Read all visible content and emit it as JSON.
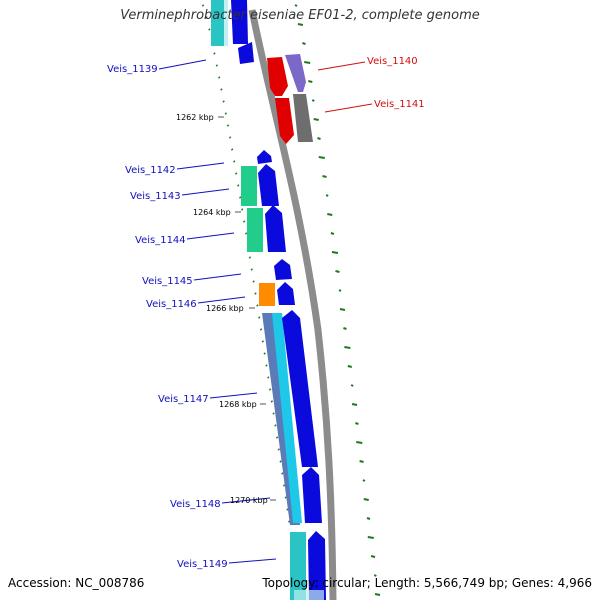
{
  "title": "Verminephrobacter eiseniae EF01-2, complete genome",
  "accession": "Accession: NC_008786",
  "topology": "Topology: circular; Length: 5,566,749 bp; Genes: 4,966",
  "colors": {
    "backbone": "#8c8c8c",
    "gc_dots": "#1e7a1e",
    "label_blue": "#1010c0",
    "label_red": "#d01010"
  },
  "genes": [
    {
      "name": "Veis_1139",
      "label_color": "blue"
    },
    {
      "name": "Veis_1140",
      "label_color": "red"
    },
    {
      "name": "Veis_1141",
      "label_color": "red"
    },
    {
      "name": "Veis_1142",
      "label_color": "blue"
    },
    {
      "name": "Veis_1143",
      "label_color": "blue"
    },
    {
      "name": "Veis_1144",
      "label_color": "blue"
    },
    {
      "name": "Veis_1145",
      "label_color": "blue"
    },
    {
      "name": "Veis_1146",
      "label_color": "blue"
    },
    {
      "name": "Veis_1147",
      "label_color": "blue"
    },
    {
      "name": "Veis_1148",
      "label_color": "blue"
    },
    {
      "name": "Veis_1149",
      "label_color": "blue"
    }
  ],
  "ticks": [
    "1262 kbp",
    "1264 kbp",
    "1266 kbp",
    "1268 kbp",
    "1270 kbp"
  ]
}
